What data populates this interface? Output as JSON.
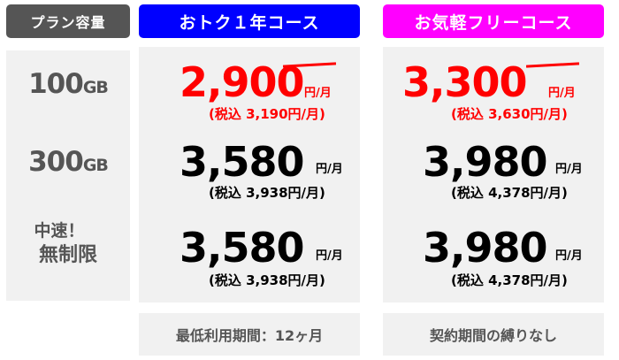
{
  "headers": {
    "capacity": "プラン容量",
    "one_year": "おトク１年コース",
    "free": "お気軽フリーコース"
  },
  "colors": {
    "capacity_header": "#555555",
    "one_year_header": "#0000ff",
    "free_header": "#ff00ff",
    "highlight_price": "#ff0000"
  },
  "plans": [
    {
      "label_num": "100",
      "label_unit": "GB",
      "one_year": {
        "price": "2,900",
        "unit": "円/月",
        "tax": "(税込 3,190円/月)"
      },
      "free": {
        "price": "3,300",
        "unit": "円/月",
        "tax": "(税込 3,630円/月)"
      }
    },
    {
      "label_num": "300",
      "label_unit": "GB",
      "one_year": {
        "price": "3,580",
        "unit": "円/月",
        "tax": "(税込 3,938円/月)"
      },
      "free": {
        "price": "3,980",
        "unit": "円/月",
        "tax": "(税込 4,378円/月)"
      }
    },
    {
      "label_line1": "中速！",
      "label_line2": "無制限",
      "one_year": {
        "price": "3,580",
        "unit": "円/月",
        "tax": "(税込 3,938円/月)"
      },
      "free": {
        "price": "3,980",
        "unit": "円/月",
        "tax": "(税込 4,378円/月)"
      }
    }
  ],
  "footers": {
    "one_year": "最低利用期間：12ヶ月",
    "free": "契約期間の縛りなし"
  }
}
